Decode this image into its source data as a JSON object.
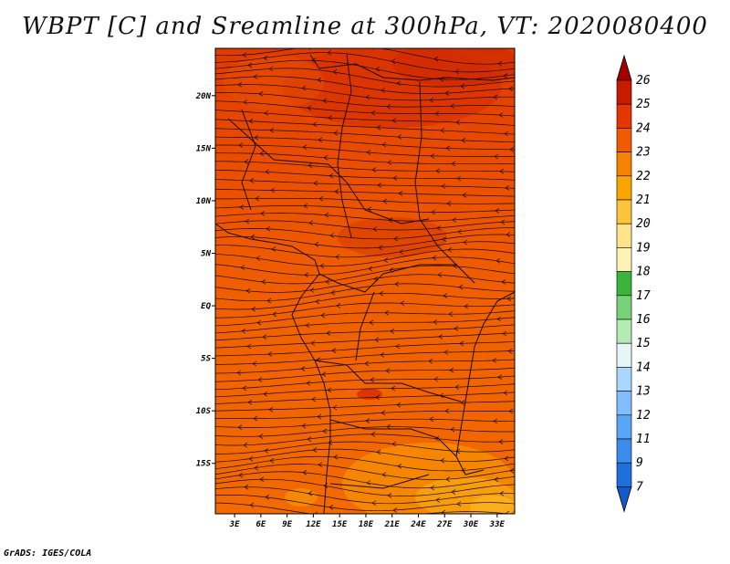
{
  "title": "WBPT [C] and Sreamline at 300hPa, VT: 2020080400",
  "credit": "GrADS: IGES/COLA",
  "lat_labels": [
    "20N",
    "15N",
    "10N",
    "5N",
    "EQ",
    "5S",
    "10S",
    "15S"
  ],
  "lat_values": [
    20,
    15,
    10,
    5,
    0,
    -5,
    -10,
    -15
  ],
  "lon_labels": [
    "3E",
    "6E",
    "9E",
    "12E",
    "15E",
    "18E",
    "21E",
    "24E",
    "27E",
    "30E",
    "33E"
  ],
  "lon_values": [
    3,
    6,
    9,
    12,
    15,
    18,
    21,
    24,
    27,
    30,
    33
  ],
  "extent": {
    "lon_min": 0.8,
    "lon_max": 35.0,
    "lat_min": -19.8,
    "lat_max": 24.5
  },
  "colorbar": {
    "labels": [
      "26",
      "25",
      "24",
      "23",
      "22",
      "21",
      "20",
      "19",
      "18",
      "17",
      "16",
      "15",
      "14",
      "13",
      "12",
      "11",
      "9",
      "7"
    ],
    "colors": [
      "#a50000",
      "#c81a00",
      "#e43600",
      "#f05a00",
      "#f58200",
      "#f9a500",
      "#fbc43a",
      "#fde38a",
      "#fff4b8",
      "#3cb43c",
      "#78d278",
      "#b4ebb4",
      "#e6f5f5",
      "#aad7ff",
      "#82beff",
      "#5aa5f5",
      "#3c8ced",
      "#1e6edc",
      "#145ac8"
    ]
  }
}
